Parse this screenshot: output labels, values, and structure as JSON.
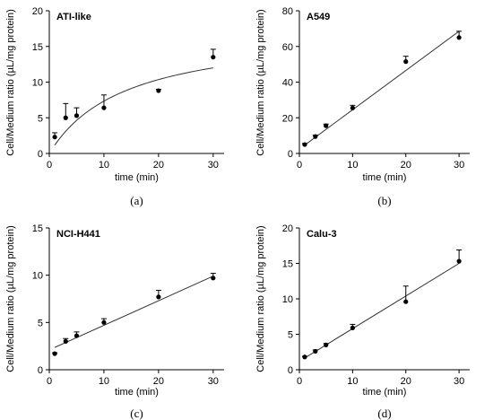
{
  "chart_data": [
    {
      "type": "scatter",
      "title": "ATI-like",
      "caption": "(a)",
      "xlabel": "time (min)",
      "ylabel": "Cell/Medium ratio (µL/mg protein)",
      "xlim": [
        0,
        32
      ],
      "ylim": [
        0,
        20
      ],
      "xticks": [
        0,
        10,
        20,
        30
      ],
      "yticks": [
        0,
        5,
        10,
        15,
        20
      ],
      "x": [
        1,
        3,
        5,
        10,
        20,
        30
      ],
      "y": [
        2.3,
        5.0,
        5.3,
        6.4,
        8.8,
        13.5
      ],
      "error": [
        0.6,
        2.0,
        1.1,
        1.8,
        0.2,
        1.1
      ],
      "fit": "saturation",
      "fit_params": {
        "vmax": 17.6,
        "km": 14.0
      }
    },
    {
      "type": "scatter",
      "title": "A549",
      "caption": "(b)",
      "xlabel": "time (min)",
      "ylabel": "Cell/Medium ratio (µL/mg protein)",
      "xlim": [
        0,
        32
      ],
      "ylim": [
        0,
        80
      ],
      "xticks": [
        0,
        10,
        20,
        30
      ],
      "yticks": [
        0,
        20,
        40,
        60,
        80
      ],
      "x": [
        1,
        3,
        5,
        10,
        20,
        30
      ],
      "y": [
        5.0,
        9.5,
        15.5,
        25.5,
        51.5,
        65.0
      ],
      "error": [
        0.6,
        0.8,
        1.0,
        1.5,
        3.0,
        3.5
      ],
      "fit": "linear",
      "fit_params": {
        "slope": 2.2,
        "intercept": 2.5
      }
    },
    {
      "type": "scatter",
      "title": "NCI-H441",
      "caption": "(c)",
      "xlabel": "time (min)",
      "ylabel": "Cell/Medium ratio (µL/mg protein)",
      "xlim": [
        0,
        32
      ],
      "ylim": [
        0,
        15
      ],
      "xticks": [
        0,
        10,
        20,
        30
      ],
      "yticks": [
        0,
        5,
        10,
        15
      ],
      "x": [
        1,
        3,
        5,
        10,
        20,
        30
      ],
      "y": [
        1.7,
        3.0,
        3.6,
        5.0,
        7.7,
        9.7
      ],
      "error": [
        0.1,
        0.3,
        0.4,
        0.4,
        0.7,
        0.5
      ],
      "fit": "linear",
      "fit_params": {
        "slope": 0.26,
        "intercept": 2.1
      }
    },
    {
      "type": "scatter",
      "title": "Calu-3",
      "caption": "(d)",
      "xlabel": "time (min)",
      "ylabel": "Cell/Medium ratio (µL/mg protein)",
      "xlim": [
        0,
        32
      ],
      "ylim": [
        0,
        20
      ],
      "xticks": [
        0,
        10,
        20,
        30
      ],
      "yticks": [
        0,
        5,
        10,
        15,
        20
      ],
      "x": [
        1,
        3,
        5,
        10,
        20,
        30
      ],
      "y": [
        1.8,
        2.6,
        3.5,
        5.9,
        9.6,
        15.3
      ],
      "error": [
        0.1,
        0.2,
        0.2,
        0.5,
        2.2,
        1.6
      ],
      "fit": "linear",
      "fit_params": {
        "slope": 0.46,
        "intercept": 1.2
      }
    }
  ]
}
